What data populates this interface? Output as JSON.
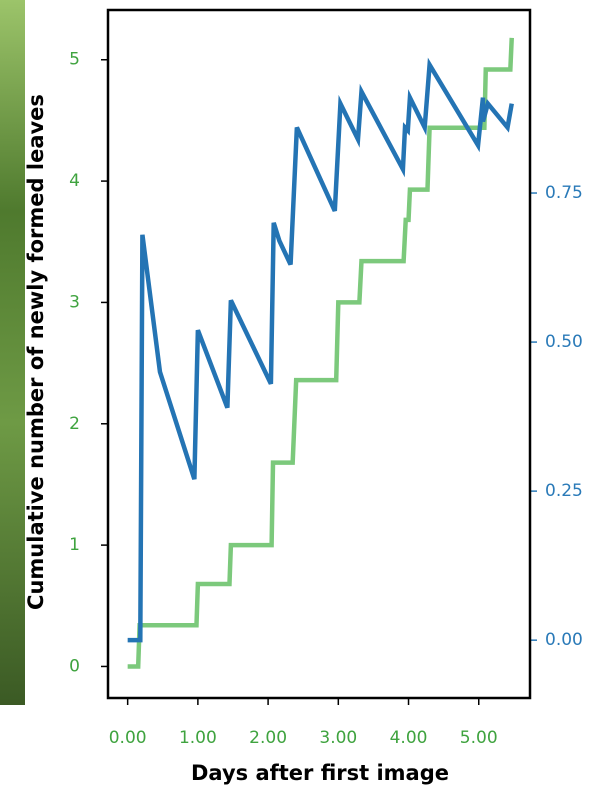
{
  "chart_data": {
    "type": "line",
    "xlabel": "Days after first image",
    "ylabel": "Cumulative number of newly formed leaves",
    "xlim": [
      -0.28,
      5.73
    ],
    "ylim": [
      -0.26,
      5.41
    ],
    "y2lim": [
      -0.097,
      1.057
    ],
    "xticks": [
      {
        "value": 0,
        "label": "0.00"
      },
      {
        "value": 1,
        "label": "1.00"
      },
      {
        "value": 2,
        "label": "2.00"
      },
      {
        "value": 3,
        "label": "3.00"
      },
      {
        "value": 4,
        "label": "4.00"
      },
      {
        "value": 5,
        "label": "5.00"
      }
    ],
    "yticks": [
      0,
      1,
      2,
      3,
      4,
      5
    ],
    "y2ticks": [
      {
        "value": 0,
        "label": "0.00"
      },
      {
        "value": 0.25,
        "label": "0.25"
      },
      {
        "value": 0.5,
        "label": "0.50"
      },
      {
        "value": 0.75,
        "label": "0.75"
      }
    ],
    "ytick_color": "#3fa33f",
    "xtick_color": "#3fa33f",
    "y2tick_color": "#2a7ab8",
    "series": [
      {
        "color": "#7cc97c",
        "x": [
          0,
          0.15,
          0.17,
          0.98,
          1.0,
          1.45,
          1.47,
          2.05,
          2.07,
          2.35,
          2.4,
          2.97,
          3.0,
          3.3,
          3.33,
          3.93,
          3.96,
          4.0,
          4.02,
          4.27,
          4.3,
          5.08,
          5.1,
          5.45,
          5.47
        ],
        "values": [
          0,
          0,
          0.34,
          0.34,
          0.68,
          0.68,
          1.0,
          1.0,
          1.68,
          1.68,
          2.36,
          2.36,
          3.0,
          3.0,
          3.34,
          3.34,
          3.68,
          3.68,
          3.93,
          3.93,
          4.44,
          4.44,
          4.92,
          4.92,
          5.18
        ]
      },
      {
        "color": "#2474b4",
        "axis": "y2",
        "x": [
          0,
          0.18,
          0.21,
          0.46,
          0.95,
          1.0,
          1.42,
          1.47,
          2.04,
          2.08,
          2.16,
          2.32,
          2.41,
          2.95,
          3.03,
          3.28,
          3.33,
          3.92,
          3.95,
          3.99,
          4.02,
          4.23,
          4.3,
          4.99,
          5.06,
          5.06,
          5.13,
          5.41,
          5.47
        ],
        "values": [
          0,
          0,
          0.68,
          0.45,
          0.27,
          0.52,
          0.39,
          0.57,
          0.43,
          0.7,
          0.67,
          0.63,
          0.86,
          0.72,
          0.9,
          0.84,
          0.92,
          0.79,
          0.86,
          0.855,
          0.91,
          0.86,
          0.965,
          0.83,
          0.91,
          0.87,
          0.9,
          0.86,
          0.9
        ]
      }
    ]
  }
}
